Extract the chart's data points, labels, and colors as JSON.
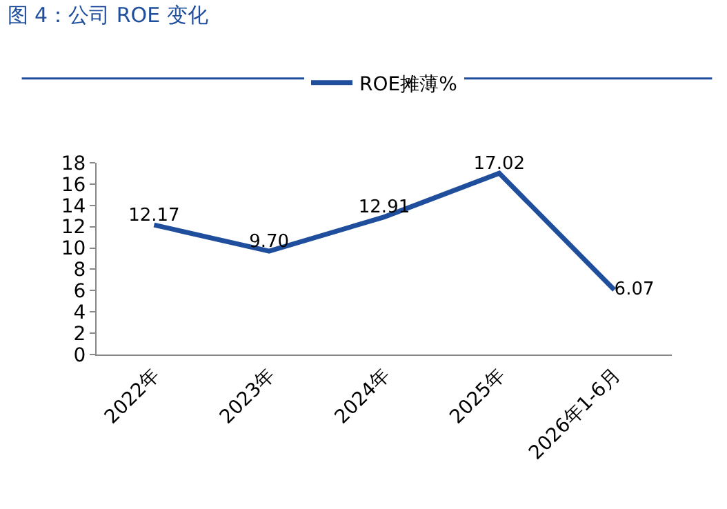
{
  "chart_data": {
    "type": "line",
    "title": "图 4：公司 ROE 变化",
    "categories": [
      "2022年",
      "2023年",
      "2024年",
      "2025年",
      "2026年1-6月"
    ],
    "series": [
      {
        "name": "ROE摊薄%",
        "color": "#1f4e9c",
        "values": [
          12.17,
          9.7,
          12.91,
          17.02,
          6.07
        ],
        "value_labels": [
          "12.17",
          "9.70",
          "12.91",
          "17.02",
          "6.07"
        ]
      }
    ],
    "ylim": [
      0,
      18
    ],
    "yticks": [
      0,
      2,
      4,
      6,
      8,
      10,
      12,
      14,
      16,
      18
    ],
    "grid": false,
    "legend": "top",
    "marker": "none",
    "line_style": "solid"
  }
}
